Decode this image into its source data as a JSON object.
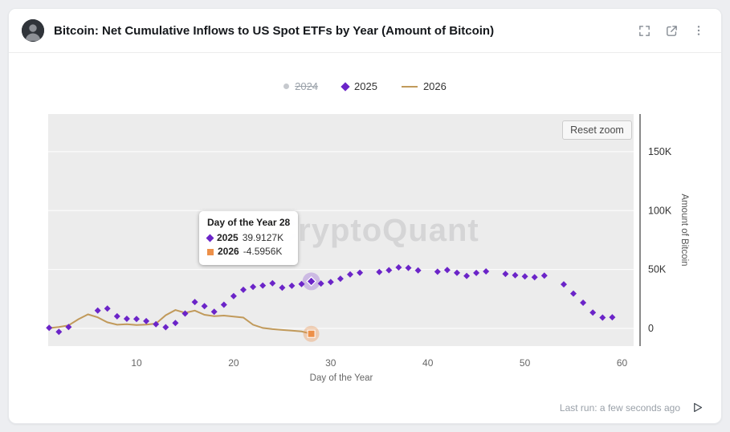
{
  "header": {
    "title": "Bitcoin: Net Cumulative Inflows to US Spot ETFs by Year (Amount of Bitcoin)"
  },
  "legend": {
    "items": [
      {
        "label": "2024",
        "disabled": true,
        "marker": "circle",
        "color": "#c6c9ce"
      },
      {
        "label": "2025",
        "disabled": false,
        "marker": "diamond",
        "color": "#6b24c8"
      },
      {
        "label": "2026",
        "disabled": false,
        "marker": "line",
        "color": "#c19a5b"
      }
    ]
  },
  "chart": {
    "reset_zoom_label": "Reset zoom",
    "watermark": "CryptoQuant"
  },
  "tooltip": {
    "title": "Day of the Year 28",
    "rows": [
      {
        "series": "2025",
        "value": "39.9127K",
        "color": "#6b24c8",
        "marker": "diamond"
      },
      {
        "series": "2026",
        "value": "-4.5956K",
        "color": "#ed9049",
        "marker": "square"
      }
    ]
  },
  "footer": {
    "last_run": "Last run: a few seconds ago"
  },
  "chart_data": {
    "type": "scatter",
    "title": "Bitcoin: Net Cumulative Inflows to US Spot ETFs by Year (Amount of Bitcoin)",
    "xlabel": "Day of the Year",
    "ylabel": "Amount of Bitcoin",
    "unit": "thousand BTC (values in K)",
    "xlim": [
      0.9,
      61.2
    ],
    "ylim": [
      -15,
      182
    ],
    "x_ticks": [
      10,
      20,
      30,
      40,
      50,
      60
    ],
    "y_ticks": [
      {
        "value": 0,
        "label": "0"
      },
      {
        "value": 50,
        "label": "50K"
      },
      {
        "value": 100,
        "label": "100K"
      },
      {
        "value": 150,
        "label": "150K"
      }
    ],
    "grid": true,
    "legend_position": "top",
    "plot_bg": "#ececec",
    "watermark": "CryptoQuant",
    "highlight": {
      "day": 28
    },
    "series": [
      {
        "name": "2024",
        "type": "scatter",
        "visible": false,
        "color": "#c6c9ce",
        "points": []
      },
      {
        "name": "2026",
        "type": "line",
        "color": "#c19a5b",
        "halo": "rgba(237,144,73,0.35)",
        "end_marker": {
          "shape": "square",
          "color": "#ed9049"
        },
        "points": [
          [
            1,
            0.3
          ],
          [
            2,
            1.2
          ],
          [
            3,
            2.6
          ],
          [
            4,
            7.8
          ],
          [
            5,
            11.9
          ],
          [
            6,
            9.4
          ],
          [
            7,
            5.2
          ],
          [
            8,
            3.1
          ],
          [
            9,
            3.6
          ],
          [
            10,
            2.9
          ],
          [
            11,
            3.3
          ],
          [
            12,
            4.1
          ],
          [
            13,
            11.2
          ],
          [
            14,
            15.6
          ],
          [
            15,
            13.2
          ],
          [
            16,
            15.1
          ],
          [
            17,
            11.6
          ],
          [
            18,
            10.4
          ],
          [
            19,
            10.9
          ],
          [
            20,
            10.1
          ],
          [
            21,
            9.2
          ],
          [
            22,
            3.1
          ],
          [
            23,
            0.4
          ],
          [
            24,
            -0.6
          ],
          [
            25,
            -1.3
          ],
          [
            26,
            -1.9
          ],
          [
            27,
            -2.6
          ],
          [
            28,
            -4.5956
          ]
        ]
      },
      {
        "name": "2025",
        "type": "scatter",
        "marker": "diamond",
        "color": "#6b24c8",
        "halo": "rgba(107,36,200,0.25)",
        "points": [
          [
            1,
            0.5
          ],
          [
            2,
            -2.9
          ],
          [
            3,
            1.2
          ],
          [
            6,
            15.2
          ],
          [
            7,
            16.8
          ],
          [
            8,
            10.3
          ],
          [
            9,
            8.2
          ],
          [
            10,
            8.0
          ],
          [
            11,
            6.2
          ],
          [
            12,
            3.6
          ],
          [
            13,
            1.0
          ],
          [
            14,
            4.6
          ],
          [
            15,
            12.6
          ],
          [
            16,
            22.4
          ],
          [
            17,
            18.9
          ],
          [
            18,
            14.2
          ],
          [
            19,
            20.1
          ],
          [
            20,
            27.4
          ],
          [
            21,
            32.8
          ],
          [
            22,
            35.3
          ],
          [
            23,
            36.4
          ],
          [
            24,
            38.3
          ],
          [
            25,
            34.6
          ],
          [
            26,
            36.2
          ],
          [
            27,
            37.6
          ],
          [
            28,
            39.9127
          ],
          [
            29,
            38.1
          ],
          [
            30,
            39.4
          ],
          [
            31,
            42.2
          ],
          [
            32,
            45.9
          ],
          [
            33,
            47.3
          ],
          [
            35,
            47.9
          ],
          [
            36,
            49.4
          ],
          [
            37,
            51.8
          ],
          [
            38,
            51.4
          ],
          [
            39,
            49.2
          ],
          [
            41,
            48.1
          ],
          [
            42,
            49.6
          ],
          [
            43,
            47.2
          ],
          [
            44,
            44.6
          ],
          [
            45,
            47.1
          ],
          [
            46,
            48.4
          ],
          [
            48,
            46.3
          ],
          [
            49,
            45.1
          ],
          [
            50,
            44.2
          ],
          [
            51,
            43.4
          ],
          [
            52,
            44.8
          ],
          [
            54,
            37.4
          ],
          [
            55,
            29.6
          ],
          [
            56,
            21.8
          ],
          [
            57,
            13.4
          ],
          [
            58,
            9.2
          ],
          [
            59,
            9.5
          ]
        ]
      }
    ]
  }
}
